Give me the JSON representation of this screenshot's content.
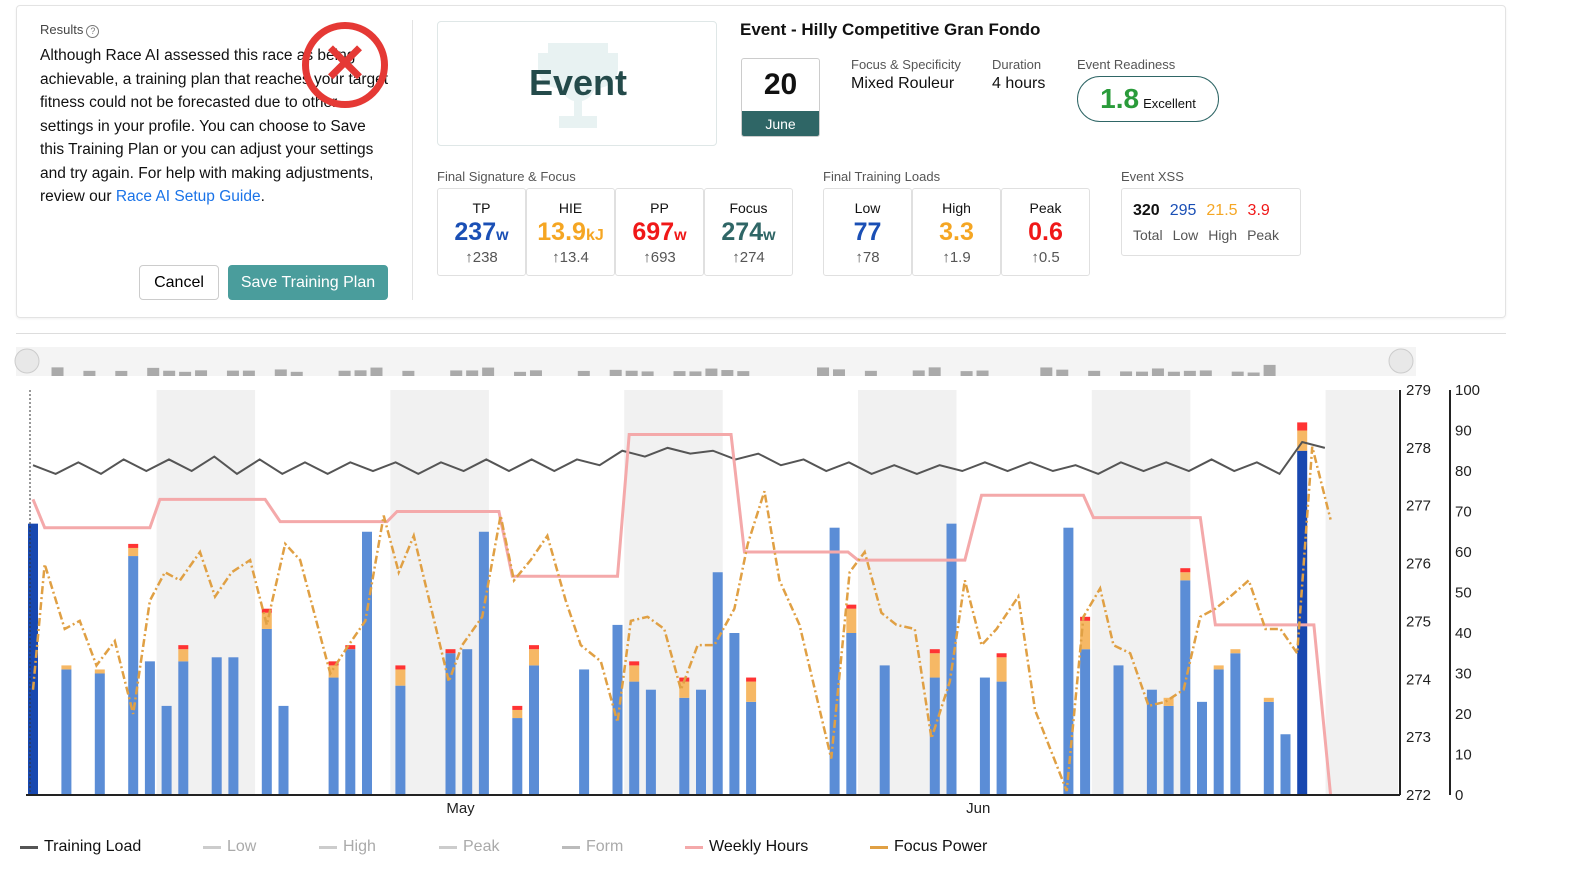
{
  "results": {
    "label": "Results",
    "message": "Although Race AI assessed this race as being achievable, a training plan that reaches your target fitness could not be forecasted due to other settings in your profile. You can choose to Save this Training Plan or you can adjust your settings and try again. For help with making adjustments, review our ",
    "link": "Race AI Setup Guide",
    "message_end": ".",
    "cancel": "Cancel",
    "save": "Save Training Plan",
    "status_icon": "x-circle-icon"
  },
  "event": {
    "badge": "Event",
    "title": "Event - Hilly Competitive Gran Fondo",
    "day": "20",
    "month": "June",
    "focus_label": "Focus & Specificity",
    "focus_value": "Mixed Rouleur",
    "duration_label": "Duration",
    "duration_value": "4 hours",
    "readiness_label": "Event Readiness",
    "readiness_value": "1.8",
    "readiness_text": "Excellent"
  },
  "signature": {
    "header": "Final Signature & Focus",
    "tiles": [
      {
        "name": "TP",
        "value": "237",
        "unit": "w",
        "prev": "↑238",
        "color": "#1a4fb5"
      },
      {
        "name": "HIE",
        "value": "13.9",
        "unit": "kJ",
        "prev": "↑13.4",
        "color": "#f5a623"
      },
      {
        "name": "PP",
        "value": "697",
        "unit": "w",
        "prev": "↑693",
        "color": "#f01818"
      },
      {
        "name": "Focus",
        "value": "274",
        "unit": "w",
        "prev": "↑274",
        "color": "#2f6666"
      }
    ]
  },
  "loads": {
    "header": "Final Training Loads",
    "tiles": [
      {
        "name": "Low",
        "value": "77",
        "unit": "",
        "prev": "↑78",
        "color": "#1a4fb5"
      },
      {
        "name": "High",
        "value": "3.3",
        "unit": "",
        "prev": "↑1.9",
        "color": "#f5a623"
      },
      {
        "name": "Peak",
        "value": "0.6",
        "unit": "",
        "prev": "↑0.5",
        "color": "#f01818"
      }
    ]
  },
  "xss": {
    "header": "Event XSS",
    "values": [
      {
        "value": "320",
        "label": "Total",
        "color": "#111"
      },
      {
        "value": "295",
        "label": "Low",
        "color": "#1a4fb5"
      },
      {
        "value": "21.5",
        "label": "High",
        "color": "#f5a623"
      },
      {
        "value": "3.9",
        "label": "Peak",
        "color": "#f01818"
      }
    ]
  },
  "chart_data": {
    "type": "bar+line",
    "x_tick_labels": [
      {
        "day": 25.6,
        "label": "May"
      },
      {
        "day": 56.6,
        "label": "Jun"
      }
    ],
    "left_axis": {
      "range": [
        272,
        279
      ],
      "ticks": [
        "279",
        "278",
        "277",
        "276",
        "275",
        "274",
        "273",
        "272"
      ]
    },
    "right_axis": {
      "range": [
        0,
        100
      ],
      "ticks": [
        "100",
        "90",
        "80",
        "70",
        "60",
        "50",
        "40",
        "30",
        "20",
        "10",
        "0"
      ]
    },
    "shaded_weeks": [
      [
        7.4,
        13.3
      ],
      [
        21.4,
        27.3
      ],
      [
        35.4,
        41.3
      ],
      [
        49.4,
        55.3
      ],
      [
        63.4,
        69.3
      ],
      [
        77.4,
        82
      ]
    ],
    "bars": [
      [
        0,
        67,
        0,
        0
      ],
      [
        2,
        31,
        1,
        0
      ],
      [
        4,
        30,
        1,
        0
      ],
      [
        6,
        59,
        2,
        1
      ],
      [
        7,
        33,
        0,
        0
      ],
      [
        8,
        22,
        0,
        0
      ],
      [
        9,
        33,
        3,
        1
      ],
      [
        11,
        34,
        0,
        0
      ],
      [
        12,
        34,
        0,
        0
      ],
      [
        14,
        41,
        4,
        1
      ],
      [
        15,
        22,
        0,
        0
      ],
      [
        18,
        29,
        3,
        1
      ],
      [
        19,
        36,
        0,
        1
      ],
      [
        20,
        65,
        0,
        0
      ],
      [
        22,
        27,
        4,
        1
      ],
      [
        25,
        35,
        0,
        1
      ],
      [
        26,
        36,
        0,
        0
      ],
      [
        27,
        65,
        0,
        0
      ],
      [
        29,
        19,
        2,
        1
      ],
      [
        30,
        32,
        4,
        1
      ],
      [
        33,
        31,
        0,
        0
      ],
      [
        35,
        42,
        0,
        0
      ],
      [
        36,
        28,
        4,
        1
      ],
      [
        37,
        26,
        0,
        0
      ],
      [
        39,
        24,
        4,
        1
      ],
      [
        40,
        26,
        0,
        0
      ],
      [
        41,
        55,
        0,
        0
      ],
      [
        42,
        40,
        0,
        0
      ],
      [
        43,
        23,
        5,
        1
      ],
      [
        48,
        66,
        0,
        0
      ],
      [
        49,
        40,
        6,
        1
      ],
      [
        51,
        32,
        0,
        0
      ],
      [
        54,
        29,
        6,
        1
      ],
      [
        55,
        67,
        0,
        0
      ],
      [
        57,
        29,
        0,
        0
      ],
      [
        58,
        28,
        6,
        1
      ],
      [
        62,
        66,
        0,
        0
      ],
      [
        63,
        36,
        7,
        1
      ],
      [
        65,
        32,
        0,
        0
      ],
      [
        67,
        26,
        0,
        0
      ],
      [
        68,
        22,
        2,
        0
      ],
      [
        69,
        53,
        2,
        1
      ],
      [
        70,
        23,
        0,
        0
      ],
      [
        71,
        31,
        1,
        0
      ],
      [
        72,
        35,
        1,
        0
      ],
      [
        74,
        23,
        1,
        0
      ],
      [
        75,
        15,
        0,
        0
      ],
      [
        76,
        85,
        5,
        2
      ]
    ],
    "bar_series": [
      "Low",
      "High",
      "Peak"
    ],
    "training_load": [
      277.7,
      277.55,
      277.75,
      277.55,
      277.8,
      277.6,
      277.8,
      277.6,
      277.85,
      277.55,
      277.8,
      277.55,
      277.75,
      277.55,
      277.75,
      277.6,
      277.75,
      277.55,
      277.75,
      277.6,
      277.8,
      277.6,
      277.8,
      277.6,
      277.8,
      277.7,
      277.95,
      277.85,
      278.0,
      277.9,
      277.95,
      277.8,
      277.9,
      277.7,
      277.8,
      277.6,
      277.75,
      277.55,
      277.7,
      277.55,
      277.7,
      277.6,
      277.75,
      277.6,
      277.75,
      277.6,
      277.7,
      277.55,
      277.75,
      277.6,
      277.75,
      277.6,
      277.8,
      277.6,
      277.75,
      277.55,
      278.1,
      278.0
    ],
    "weekly_hours": [
      [
        0,
        73
      ],
      [
        0.7,
        66
      ],
      [
        7,
        66
      ],
      [
        7.6,
        73
      ],
      [
        13.9,
        73
      ],
      [
        14.8,
        67.5
      ],
      [
        21.2,
        67.5
      ],
      [
        21.8,
        70
      ],
      [
        27.9,
        70
      ],
      [
        28.7,
        54
      ],
      [
        35,
        54
      ],
      [
        35.7,
        89
      ],
      [
        41.8,
        89
      ],
      [
        42.6,
        60
      ],
      [
        48.8,
        60
      ],
      [
        49.4,
        58
      ],
      [
        55.8,
        58
      ],
      [
        56.8,
        74
      ],
      [
        62.9,
        74
      ],
      [
        63.5,
        68.5
      ],
      [
        69.9,
        68.5
      ],
      [
        70.8,
        42
      ],
      [
        76.7,
        42
      ],
      [
        77.7,
        0
      ]
    ],
    "focus_power": [
      [
        0,
        26
      ],
      [
        0.7,
        57
      ],
      [
        1.9,
        41
      ],
      [
        2.8,
        43
      ],
      [
        3.8,
        32
      ],
      [
        4.9,
        38
      ],
      [
        6,
        20
      ],
      [
        7,
        48
      ],
      [
        7.9,
        55
      ],
      [
        8.8,
        53
      ],
      [
        10,
        60
      ],
      [
        10.9,
        49
      ],
      [
        11.9,
        55
      ],
      [
        13,
        58
      ],
      [
        14,
        42
      ],
      [
        15.1,
        62
      ],
      [
        16,
        58
      ],
      [
        17.8,
        30
      ],
      [
        18.9,
        37
      ],
      [
        19.9,
        43
      ],
      [
        21,
        69
      ],
      [
        21.9,
        55
      ],
      [
        22.8,
        64
      ],
      [
        24.9,
        28
      ],
      [
        25.7,
        37
      ],
      [
        26.9,
        44
      ],
      [
        28,
        69
      ],
      [
        28.8,
        53
      ],
      [
        29.8,
        58
      ],
      [
        30.8,
        64
      ],
      [
        31.9,
        48
      ],
      [
        32.8,
        37
      ],
      [
        34,
        33
      ],
      [
        35,
        18
      ],
      [
        35.8,
        43
      ],
      [
        36.8,
        44
      ],
      [
        37.8,
        41
      ],
      [
        38.8,
        26
      ],
      [
        39.8,
        37
      ],
      [
        40.8,
        37
      ],
      [
        42,
        46
      ],
      [
        42.8,
        62
      ],
      [
        43.8,
        75
      ],
      [
        44.7,
        53
      ],
      [
        45.9,
        42
      ],
      [
        47.8,
        9
      ],
      [
        48.9,
        55
      ],
      [
        49.8,
        60
      ],
      [
        50.8,
        45
      ],
      [
        51.7,
        42
      ],
      [
        52.8,
        41
      ],
      [
        53.8,
        14
      ],
      [
        54.9,
        28
      ],
      [
        55.8,
        53
      ],
      [
        56.8,
        37
      ],
      [
        57.7,
        41
      ],
      [
        59,
        49
      ],
      [
        60,
        21
      ],
      [
        61.9,
        1
      ],
      [
        62.9,
        44
      ],
      [
        63.9,
        51
      ],
      [
        64.7,
        37
      ],
      [
        65.7,
        35
      ],
      [
        66.8,
        22
      ],
      [
        67.8,
        23
      ],
      [
        68.9,
        26
      ],
      [
        69.9,
        44
      ],
      [
        70.8,
        46
      ],
      [
        71.7,
        49
      ],
      [
        72.8,
        53
      ],
      [
        73.8,
        41
      ],
      [
        74.7,
        41
      ],
      [
        75.7,
        35
      ],
      [
        76.6,
        86
      ],
      [
        77.7,
        68
      ]
    ],
    "legend": [
      {
        "label": "Training Load",
        "color": "#555",
        "active": true
      },
      {
        "label": "Low",
        "color": "#ccc",
        "active": false
      },
      {
        "label": "High",
        "color": "#ccc",
        "active": false
      },
      {
        "label": "Peak",
        "color": "#ccc",
        "active": false
      },
      {
        "label": "Form",
        "color": "#bbb",
        "active": false
      },
      {
        "label": "Weekly Hours",
        "color": "#f4a9aa",
        "active": true
      },
      {
        "label": "Focus Power",
        "color": "#e0a044",
        "active": true
      }
    ]
  }
}
